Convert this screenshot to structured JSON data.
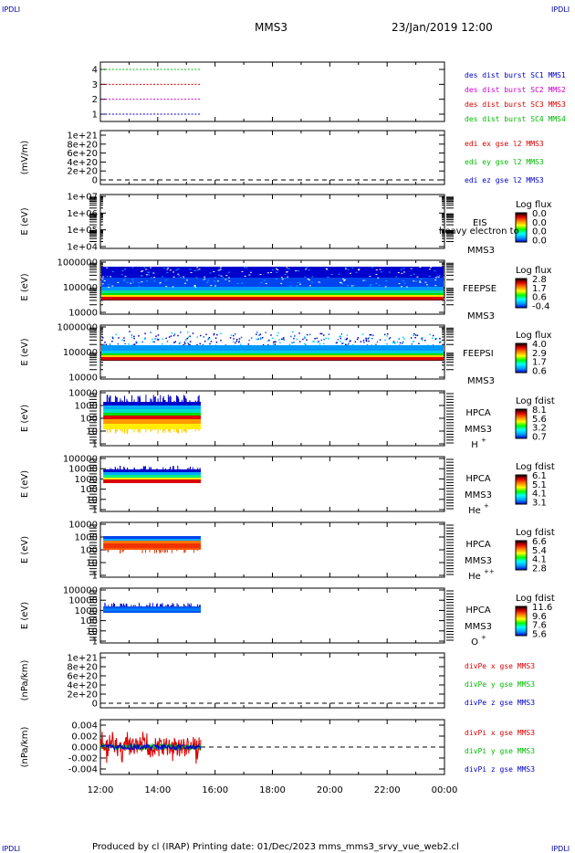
{
  "header": {
    "corner_tl": "IPDLI",
    "corner_tr": "IPDLI",
    "corner_bl": "IPDLI",
    "corner_br": "IPDLI",
    "mission": "MMS3",
    "datetime": "23/Jan/2019 12:00",
    "footer": "Produced by cl (IRAP)   Printing date: 01/Dec/2023   mms_mms3_srvy_vue_web2.cl"
  },
  "colors": {
    "red": "#dd0000",
    "green": "#00bb00",
    "blue": "#0000cc",
    "magenta": "#cc00cc",
    "black": "#000000"
  },
  "chart_data": [
    {
      "type": "scatter",
      "id": "burst",
      "ylim": [
        0.5,
        4.5
      ],
      "yticks": [
        "1",
        "2",
        "3",
        "4"
      ],
      "legend": [
        {
          "name": "des dist burst SC1 MMS1",
          "color": "#0000cc",
          "y": 1
        },
        {
          "name": "des dist burst SC2 MMS2",
          "color": "#cc00cc",
          "y": 2
        },
        {
          "name": "des dist burst SC3 MMS3",
          "color": "#dd0000",
          "y": 3
        },
        {
          "name": "des dist burst SC4 MMS4",
          "color": "#00bb00",
          "y": 4
        }
      ],
      "series_x_range_hours": [
        12.0,
        15.5
      ]
    },
    {
      "type": "line",
      "id": "edi",
      "ylabel": "(mV/m)",
      "yticks": [
        "0",
        "2e+20",
        "4e+20",
        "6e+20",
        "8e+20",
        "1e+21"
      ],
      "legend": [
        {
          "name": "edi ex gse l2 MMS3",
          "color": "#dd0000"
        },
        {
          "name": "edi ey gse l2 MMS3",
          "color": "#00bb00"
        },
        {
          "name": "edi ez gse l2 MMS3",
          "color": "#0000cc"
        }
      ]
    },
    {
      "type": "heatmap",
      "id": "eis",
      "ylabel": "E (eV)",
      "yticks": [
        "1e+04",
        "1e+05",
        "1e+06",
        "1e+07"
      ],
      "instrument": "EIS",
      "overlay": "heavy electron to",
      "sc": "MMS3",
      "cbar_title": "Log flux",
      "cbar_ticks": [
        "0.0",
        "0.0",
        "0.0",
        "0.0"
      ]
    },
    {
      "type": "heatmap",
      "id": "feepse",
      "ylabel": "E (eV)",
      "yticks": [
        "10000",
        "100000",
        "1000000"
      ],
      "instrument": "FEEPSE",
      "sc": "MMS3",
      "cbar_title": "Log flux",
      "cbar_ticks": [
        "2.8",
        "1.7",
        "0.6",
        "-0.4"
      ]
    },
    {
      "type": "heatmap",
      "id": "feepsi",
      "ylabel": "E (eV)",
      "yticks": [
        "10000",
        "100000",
        "1000000"
      ],
      "instrument": "FEEPSI",
      "sc": "MMS3",
      "cbar_title": "Log flux",
      "cbar_ticks": [
        "4.0",
        "2.9",
        "1.7",
        "0.6"
      ]
    },
    {
      "type": "heatmap",
      "id": "hpca_h",
      "ylabel": "E (eV)",
      "yticks": [
        "1",
        "10",
        "100",
        "1000",
        "10000"
      ],
      "instrument": "HPCA",
      "sc": "MMS3",
      "species": "H",
      "charge": "+",
      "cbar_title": "Log fdist",
      "cbar_ticks": [
        "8.1",
        "5.6",
        "3.2",
        "0.7"
      ]
    },
    {
      "type": "heatmap",
      "id": "hpca_he",
      "ylabel": "E (eV)",
      "yticks": [
        "1",
        "10",
        "100",
        "1000",
        "10000",
        "100000"
      ],
      "instrument": "HPCA",
      "sc": "MMS3",
      "species": "He",
      "charge": "+",
      "cbar_title": "Log fdist",
      "cbar_ticks": [
        "6.1",
        "5.1",
        "4.1",
        "3.1"
      ]
    },
    {
      "type": "heatmap",
      "id": "hpca_he2",
      "ylabel": "E (eV)",
      "yticks": [
        "1",
        "10",
        "100",
        "1000",
        "10000"
      ],
      "instrument": "HPCA",
      "sc": "MMS3",
      "species": "He",
      "charge": "++",
      "cbar_title": "Log fdist",
      "cbar_ticks": [
        "6.6",
        "5.4",
        "4.1",
        "2.8"
      ]
    },
    {
      "type": "heatmap",
      "id": "hpca_o",
      "ylabel": "E (eV)",
      "yticks": [
        "1",
        "10",
        "100",
        "1000",
        "10000",
        "100000"
      ],
      "instrument": "HPCA",
      "sc": "MMS3",
      "species": "O",
      "charge": "+",
      "cbar_title": "Log fdist",
      "cbar_ticks": [
        "11.6",
        "9.6",
        "7.6",
        "5.6"
      ]
    },
    {
      "type": "line",
      "id": "divpe",
      "ylabel": "(nPa/km)",
      "yticks": [
        "0",
        "2e+20",
        "4e+20",
        "6e+20",
        "8e+20",
        "1e+21"
      ],
      "legend": [
        {
          "name": "divPe x gse MMS3",
          "color": "#dd0000"
        },
        {
          "name": "divPe y gse MMS3",
          "color": "#00bb00"
        },
        {
          "name": "divPe z gse MMS3",
          "color": "#0000cc"
        }
      ]
    },
    {
      "type": "line",
      "id": "divpi",
      "ylabel": "(nPa/km)",
      "yticks": [
        "-0.004",
        "-0.002",
        "0.000",
        "0.002",
        "0.004"
      ],
      "ylim": [
        -0.005,
        0.005
      ],
      "legend": [
        {
          "name": "divPi x gse MMS3",
          "color": "#dd0000"
        },
        {
          "name": "divPi y gse MMS3",
          "color": "#00bb00"
        },
        {
          "name": "divPi z gse MMS3",
          "color": "#0000cc"
        }
      ],
      "data_x_range_hours": [
        12.0,
        15.5
      ]
    }
  ],
  "xaxis": {
    "labels": [
      "12:00",
      "14:00",
      "16:00",
      "18:00",
      "20:00",
      "22:00",
      "00:00"
    ],
    "range_hours": [
      12,
      24
    ]
  }
}
